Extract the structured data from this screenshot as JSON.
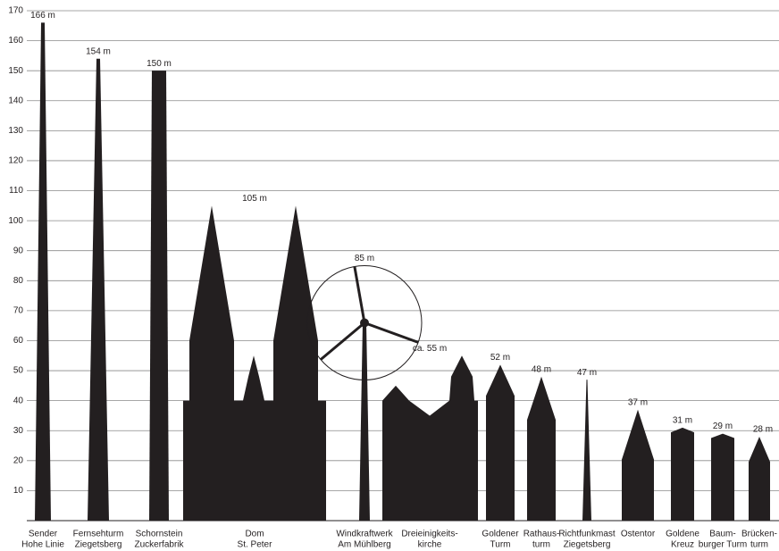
{
  "chart_data": {
    "type": "bar",
    "categories": [
      [
        "Sender",
        "Hohe Linie"
      ],
      [
        "Fernsehturm",
        "Ziegetsberg"
      ],
      [
        "Schornstein",
        "Zuckerfabrik"
      ],
      [
        "Dom",
        "St. Peter"
      ],
      [
        "Windkraftwerk",
        "Am Mühlberg"
      ],
      [
        "Dreieinigkeits-",
        "kirche"
      ],
      [
        "Goldener",
        "Turm"
      ],
      [
        "Rathaus-",
        "turm"
      ],
      [
        "Richtfunkmast",
        "Ziegetsberg"
      ],
      [
        "Ostentor"
      ],
      [
        "Goldene",
        "Kreuz"
      ],
      [
        "Baum-",
        "burger Turm"
      ],
      [
        "Brücken-",
        "turm"
      ]
    ],
    "values": [
      166,
      154,
      150,
      105,
      85,
      55,
      52,
      48,
      47,
      37,
      31,
      29,
      28
    ],
    "value_labels": [
      "166 m",
      "154 m",
      "150 m",
      "105 m",
      "85 m",
      "ca. 55 m",
      "52 m",
      "48 m",
      "47 m",
      "37 m",
      "31 m",
      "29 m",
      "28 m"
    ],
    "color": "#231f20",
    "ylim": [
      0,
      170
    ],
    "yticks": [
      10,
      20,
      30,
      40,
      50,
      60,
      70,
      80,
      90,
      100,
      110,
      120,
      130,
      140,
      150,
      160,
      170
    ],
    "grid": true
  }
}
